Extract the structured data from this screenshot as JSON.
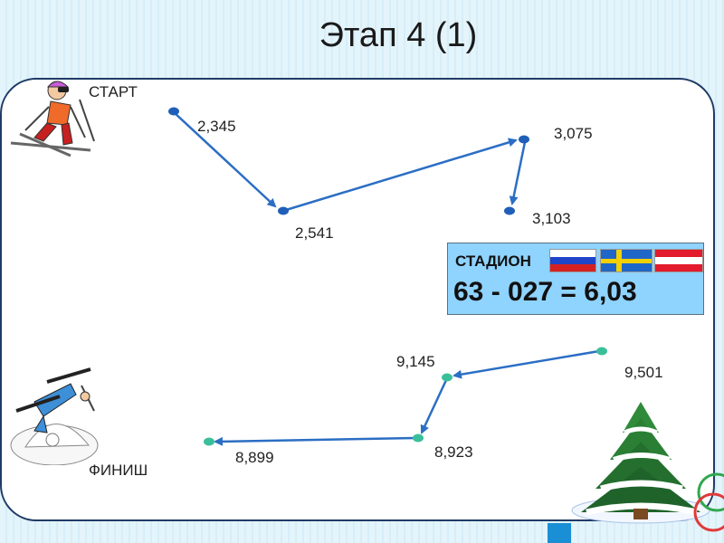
{
  "title": "Этап 4 (1)",
  "start_label": "СТАРТ",
  "finish_label": "ФИНИШ",
  "route_top": {
    "points": [
      {
        "id": "p1",
        "label": "2,345"
      },
      {
        "id": "p2",
        "label": "2,541"
      },
      {
        "id": "p3",
        "label": "3,075"
      },
      {
        "id": "p4",
        "label": "3,103"
      }
    ]
  },
  "route_bottom": {
    "points": [
      {
        "id": "q1",
        "label": "9,501"
      },
      {
        "id": "q2",
        "label": "9,145"
      },
      {
        "id": "q3",
        "label": "8,923"
      },
      {
        "id": "q4",
        "label": "8,899"
      }
    ]
  },
  "stadium": {
    "label": "СТАДИОН",
    "formula": "63 - 027 = 6,03",
    "flags": [
      "russia-flag",
      "sweden-flag",
      "austria-flag"
    ]
  },
  "colors": {
    "route_line": "#2b6ec4",
    "top_dot": "#1f5fb8",
    "bottom_dot": "#3bbf9a",
    "stadium_bg": "#8fd3ff"
  }
}
